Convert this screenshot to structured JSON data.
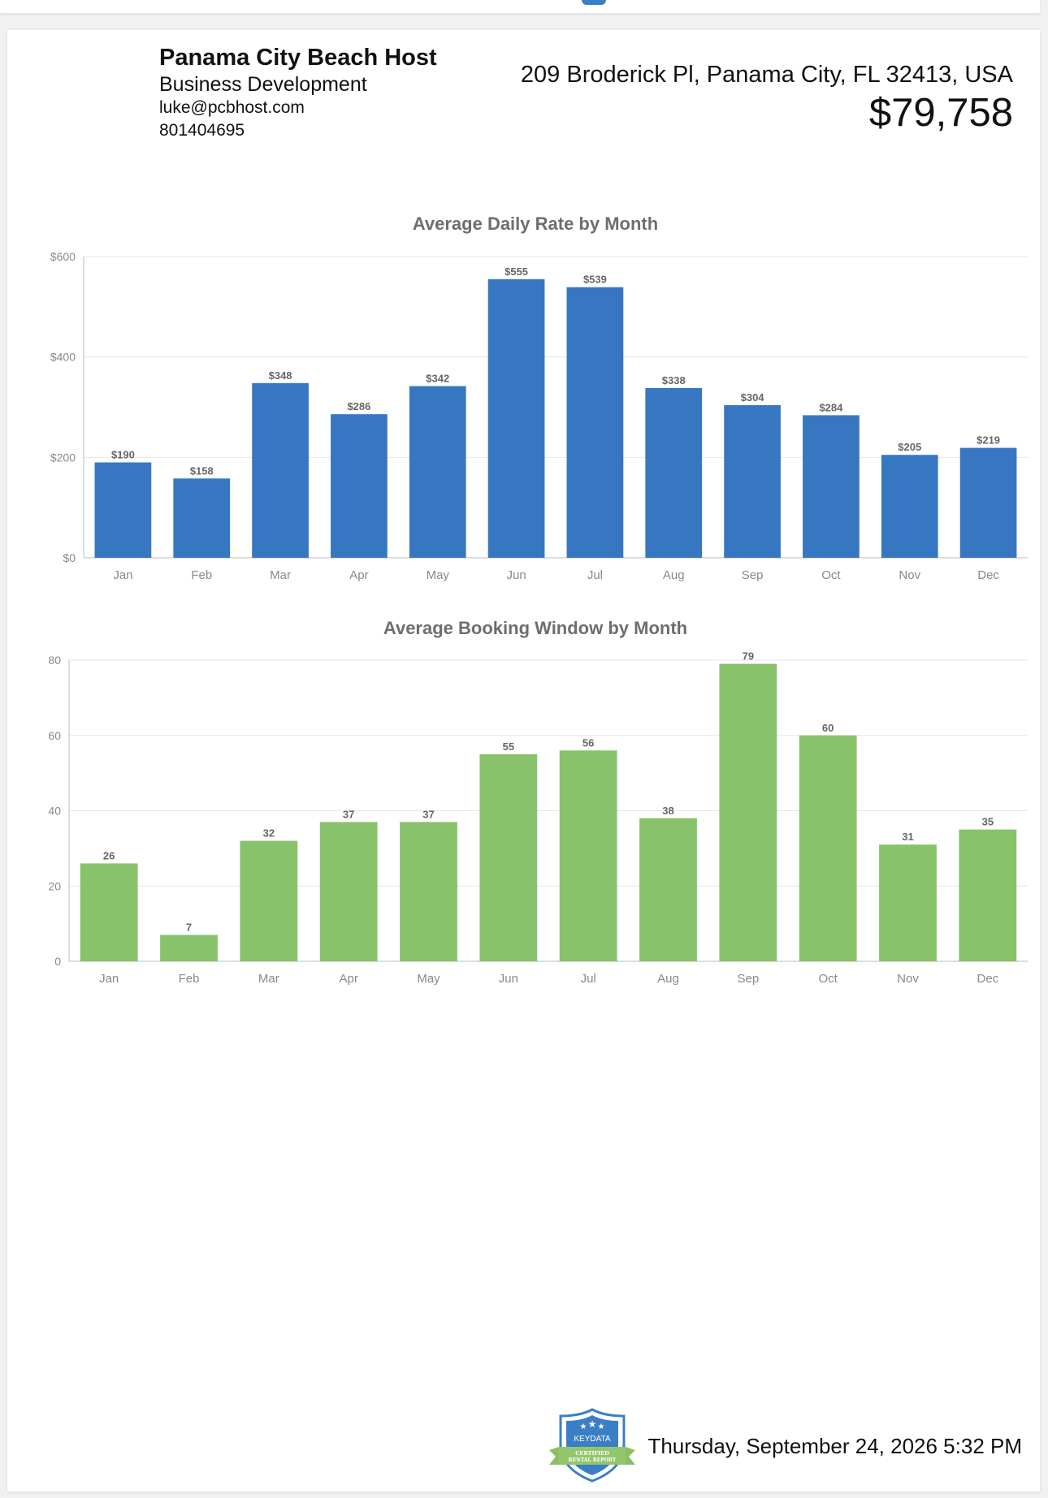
{
  "header": {
    "company_name": "Panama City Beach Host",
    "role": "Business Development",
    "email": "luke@pcbhost.com",
    "phone": "801404695",
    "address": "209 Broderick Pl, Panama City, FL 32413, USA",
    "price": "$79,758"
  },
  "footer": {
    "badge_text": "KEYDATA",
    "badge_ribbon_line1": "CERTIFIED",
    "badge_ribbon_line2": "RENTAL REPORT",
    "datetime": "Thursday, September 24, 2026 5:32 PM"
  },
  "colors": {
    "adr_bar": "#3777c2",
    "booking_bar": "#88c26b",
    "axis_text": "#888888",
    "title_text": "#6e6e6e",
    "badge_blue": "#3a7fc6",
    "badge_green": "#8cbf63"
  },
  "chart_data": [
    {
      "type": "bar",
      "title": "Average Daily Rate by Month",
      "categories": [
        "Jan",
        "Feb",
        "Mar",
        "Apr",
        "May",
        "Jun",
        "Jul",
        "Aug",
        "Sep",
        "Oct",
        "Nov",
        "Dec"
      ],
      "values": [
        190,
        158,
        348,
        286,
        342,
        555,
        539,
        338,
        304,
        284,
        205,
        219
      ],
      "value_labels": [
        "$190",
        "$158",
        "$348",
        "$286",
        "$342",
        "$555",
        "$539",
        "$338",
        "$304",
        "$284",
        "$205",
        "$219"
      ],
      "yticks": [
        0,
        200,
        400,
        600
      ],
      "ytick_labels": [
        "$0",
        "$200",
        "$400",
        "$600"
      ],
      "ylim": [
        0,
        600
      ],
      "grid": true,
      "xlabel": "",
      "ylabel": ""
    },
    {
      "type": "bar",
      "title": "Average Booking Window by Month",
      "categories": [
        "Jan",
        "Feb",
        "Mar",
        "Apr",
        "May",
        "Jun",
        "Jul",
        "Aug",
        "Sep",
        "Oct",
        "Nov",
        "Dec"
      ],
      "values": [
        26,
        7,
        32,
        37,
        37,
        55,
        56,
        38,
        79,
        60,
        31,
        35
      ],
      "value_labels": [
        "26",
        "7",
        "32",
        "37",
        "37",
        "55",
        "56",
        "38",
        "79",
        "60",
        "31",
        "35"
      ],
      "yticks": [
        0,
        20,
        40,
        60,
        80
      ],
      "ytick_labels": [
        "0",
        "20",
        "40",
        "60",
        "80"
      ],
      "ylim": [
        0,
        80
      ],
      "grid": true,
      "xlabel": "",
      "ylabel": ""
    }
  ]
}
